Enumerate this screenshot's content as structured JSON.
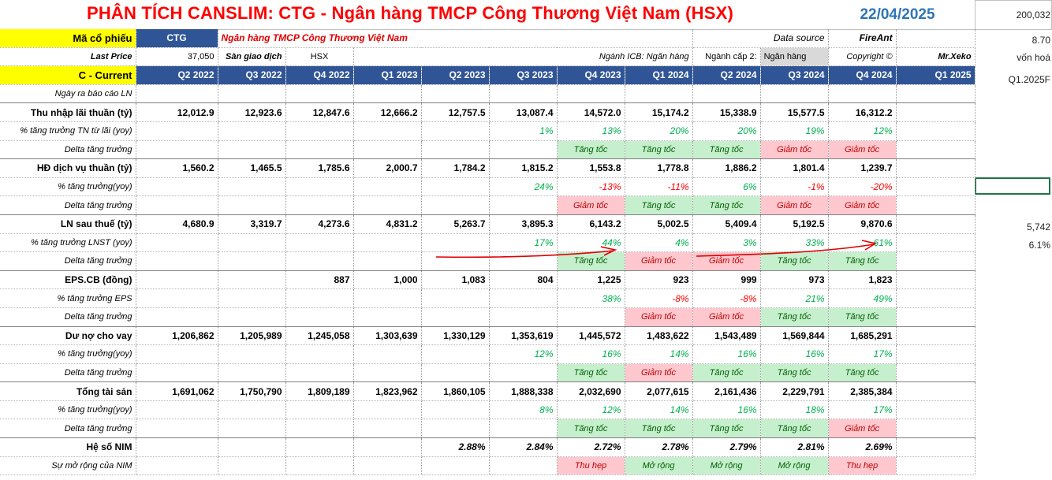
{
  "title": "PHÂN TÍCH CANSLIM: CTG - Ngân hàng TMCP Công Thương Việt Nam (HSX)",
  "date": "22/04/2025",
  "side": {
    "v1": "200,032",
    "v2": "8.70",
    "v3": "vốn hoá",
    "v4": "Q1.2025F",
    "v5": "5,742",
    "v6": "6.1%"
  },
  "info": {
    "ma_label": "Mã cổ phiếu",
    "ma_value": "CTG",
    "company": "Ngân hàng TMCP Công Thương Việt Nam",
    "ds_label": "Data source",
    "ds_value": "FireAnt",
    "price_label": "Last Price",
    "price_value": "37,050",
    "exch_label": "Sàn giao dịch",
    "exch_value": "HSX",
    "icb": "Ngành ICB: Ngân hàng",
    "cap2_label": "Ngành cấp 2:",
    "cap2_value": "Ngân hàng",
    "copy_label": "Copyright ©",
    "copy_value": "Mr.Xeko"
  },
  "header": {
    "label": "C - Current",
    "quarters": [
      "Q2 2022",
      "Q3 2022",
      "Q4 2022",
      "Q1 2023",
      "Q2 2023",
      "Q3 2023",
      "Q4 2023",
      "Q1 2024",
      "Q2 2024",
      "Q3 2024",
      "Q4 2024",
      "Q1 2025"
    ]
  },
  "rows": {
    "report_date": "Ngày ra báo cáo LN",
    "nii": {
      "label": "Thu nhập lãi thuần (tỷ)",
      "values": [
        "12,012.9",
        "12,923.6",
        "12,847.6",
        "12,666.2",
        "12,757.5",
        "13,087.4",
        "14,572.0",
        "15,174.2",
        "15,338.9",
        "15,577.5",
        "16,312.2",
        ""
      ]
    },
    "nii_g": {
      "label": "% tăng trưởng TN từ lãi (yoy)",
      "values": [
        "",
        "",
        "",
        "",
        "",
        "1%",
        "13%",
        "20%",
        "20%",
        "19%",
        "12%",
        ""
      ]
    },
    "nii_d": {
      "label": "Delta tăng trưởng",
      "values": [
        "",
        "",
        "",
        "",
        "",
        "",
        "Tăng tốc",
        "Tăng tốc",
        "Tăng tốc",
        "Giảm tốc",
        "Giảm tốc",
        ""
      ]
    },
    "svc": {
      "label": "HĐ dịch vụ thuần (tỷ)",
      "values": [
        "1,560.2",
        "1,465.5",
        "1,785.6",
        "2,000.7",
        "1,784.2",
        "1,815.2",
        "1,553.8",
        "1,778.8",
        "1,886.2",
        "1,801.4",
        "1,239.7",
        ""
      ]
    },
    "svc_g": {
      "label": "% tăng trưởng(yoy)",
      "values": [
        "",
        "",
        "",
        "",
        "",
        "24%",
        "-13%",
        "-11%",
        "6%",
        "-1%",
        "-20%",
        ""
      ]
    },
    "svc_d": {
      "label": "Delta tăng trưởng",
      "values": [
        "",
        "",
        "",
        "",
        "",
        "",
        "Giảm tốc",
        "Tăng tốc",
        "Tăng tốc",
        "Giảm tốc",
        "Giảm tốc",
        ""
      ]
    },
    "np": {
      "label": "LN sau thuế (tỷ)",
      "values": [
        "4,680.9",
        "3,319.7",
        "4,273.6",
        "4,831.2",
        "5,263.7",
        "3,895.3",
        "6,143.2",
        "5,002.5",
        "5,409.4",
        "5,192.5",
        "9,870.6",
        ""
      ]
    },
    "np_g": {
      "label": "% tăng trưởng LNST (yoy)",
      "values": [
        "",
        "",
        "",
        "",
        "",
        "17%",
        "44%",
        "4%",
        "3%",
        "33%",
        "61%",
        ""
      ]
    },
    "np_d": {
      "label": "Delta tăng trưởng",
      "values": [
        "",
        "",
        "",
        "",
        "",
        "",
        "Tăng tốc",
        "Giảm tốc",
        "Giảm tốc",
        "Tăng tốc",
        "Tăng tốc",
        ""
      ]
    },
    "eps": {
      "label": "EPS.CB (đồng)",
      "values": [
        "",
        "",
        "887",
        "1,000",
        "1,083",
        "804",
        "1,225",
        "923",
        "999",
        "973",
        "1,823",
        ""
      ]
    },
    "eps_g": {
      "label": "% tăng trưởng EPS",
      "values": [
        "",
        "",
        "",
        "",
        "",
        "",
        "38%",
        "-8%",
        "-8%",
        "21%",
        "49%",
        ""
      ]
    },
    "eps_d": {
      "label": "Delta tăng trưởng",
      "values": [
        "",
        "",
        "",
        "",
        "",
        "",
        "",
        "Giảm tốc",
        "Giảm tốc",
        "Tăng tốc",
        "Tăng tốc",
        ""
      ]
    },
    "loan": {
      "label": "Dư nợ cho vay",
      "values": [
        "1,206,862",
        "1,205,989",
        "1,245,058",
        "1,303,639",
        "1,330,129",
        "1,353,619",
        "1,445,572",
        "1,483,622",
        "1,543,489",
        "1,569,844",
        "1,685,291",
        ""
      ]
    },
    "loan_g": {
      "label": "% tăng trưởng(yoy)",
      "values": [
        "",
        "",
        "",
        "",
        "",
        "12%",
        "16%",
        "14%",
        "16%",
        "16%",
        "17%",
        ""
      ]
    },
    "loan_d": {
      "label": "Delta tăng trưởng",
      "values": [
        "",
        "",
        "",
        "",
        "",
        "",
        "Tăng tốc",
        "Giảm tốc",
        "Tăng tốc",
        "Tăng tốc",
        "Tăng tốc",
        ""
      ]
    },
    "ta": {
      "label": "Tổng tài sản",
      "values": [
        "1,691,062",
        "1,750,790",
        "1,809,189",
        "1,823,962",
        "1,860,105",
        "1,888,338",
        "2,032,690",
        "2,077,615",
        "2,161,436",
        "2,229,791",
        "2,385,384",
        ""
      ]
    },
    "ta_g": {
      "label": "% tăng trưởng(yoy)",
      "values": [
        "",
        "",
        "",
        "",
        "",
        "8%",
        "12%",
        "14%",
        "16%",
        "18%",
        "17%",
        ""
      ]
    },
    "ta_d": {
      "label": "Delta tăng trưởng",
      "values": [
        "",
        "",
        "",
        "",
        "",
        "",
        "Tăng tốc",
        "Tăng tốc",
        "Tăng tốc",
        "Tăng tốc",
        "Giảm tốc",
        ""
      ]
    },
    "nim": {
      "label": "Hệ số NIM",
      "values": [
        "",
        "",
        "",
        "",
        "2.88%",
        "2.84%",
        "2.72%",
        "2.78%",
        "2.79%",
        "2.81%",
        "2.69%",
        ""
      ]
    },
    "nim_d": {
      "label": "Sự mở rộng của NIM",
      "values": [
        "",
        "",
        "",
        "",
        "",
        "",
        "Thu hẹp",
        "Mở rộng",
        "Mở rộng",
        "Mở rộng",
        "Thu hẹp",
        ""
      ]
    }
  },
  "colors": {
    "title": "#ff0000",
    "date": "#2e75b6",
    "header_bg": "#2f5597",
    "label_bg": "#ffff00",
    "positive_bg": "#c6efce",
    "negative_bg": "#ffc7ce",
    "positive_text": "#00b050",
    "negative_text": "#ff0000",
    "annotation": "#e00000"
  }
}
